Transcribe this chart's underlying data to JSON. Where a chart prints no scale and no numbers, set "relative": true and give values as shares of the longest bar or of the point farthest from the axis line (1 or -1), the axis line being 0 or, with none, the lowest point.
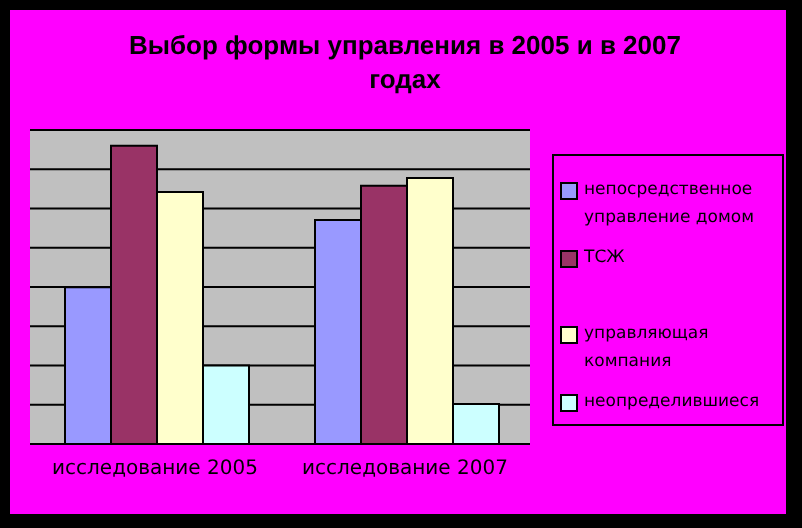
{
  "chart_data": {
    "type": "bar",
    "title": "Выбор формы управления в 2005 и в 2007 годах",
    "categories": [
      "исследование 2005",
      "исследование 2007"
    ],
    "relative": true,
    "grid": "y",
    "legend": "right",
    "series": [
      {
        "name": "непосредственное управление домом",
        "color": "#9999ff",
        "values": [
          0.526,
          0.751
        ]
      },
      {
        "name": "ТСЖ",
        "color": "#993366",
        "values": [
          1,
          0.866
        ]
      },
      {
        "name": "управляющая компания",
        "color": "#ffffcc",
        "values": [
          0.845,
          0.892
        ]
      },
      {
        "name": "неопределившиеся",
        "color": "#ccffff",
        "values": [
          0.263,
          0.134
        ]
      }
    ]
  }
}
